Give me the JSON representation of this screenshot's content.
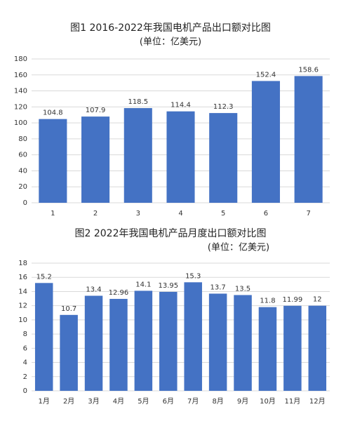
{
  "chart_data": [
    {
      "type": "bar",
      "title": "图1 2016-2022年我国电机产品出口额对比图",
      "subtitle": "(单位：亿美元)",
      "categories": [
        "1",
        "2",
        "3",
        "4",
        "5",
        "6",
        "7"
      ],
      "values": [
        104.8,
        107.9,
        118.5,
        114.4,
        112.3,
        152.4,
        158.6
      ],
      "color": "#4472c4",
      "ylim": [
        0,
        180
      ],
      "yticks": [
        0,
        20,
        40,
        60,
        80,
        100,
        120,
        140,
        160,
        180
      ],
      "grid": true
    },
    {
      "type": "bar",
      "title": "图2 2022年我国电机产品月度出口额对比图",
      "subtitle": "(单位：亿美元)",
      "categories": [
        "1月",
        "2月",
        "3月",
        "4月",
        "5月",
        "6月",
        "7月",
        "8月",
        "9月",
        "10月",
        "11月",
        "12月"
      ],
      "values": [
        15.2,
        10.7,
        13.4,
        12.96,
        14.1,
        13.95,
        15.3,
        13.7,
        13.5,
        11.8,
        11.99,
        12
      ],
      "color": "#4472c4",
      "ylim": [
        0,
        18
      ],
      "yticks": [
        0,
        2,
        4,
        6,
        8,
        10,
        12,
        14,
        16,
        18
      ],
      "grid": true
    }
  ]
}
